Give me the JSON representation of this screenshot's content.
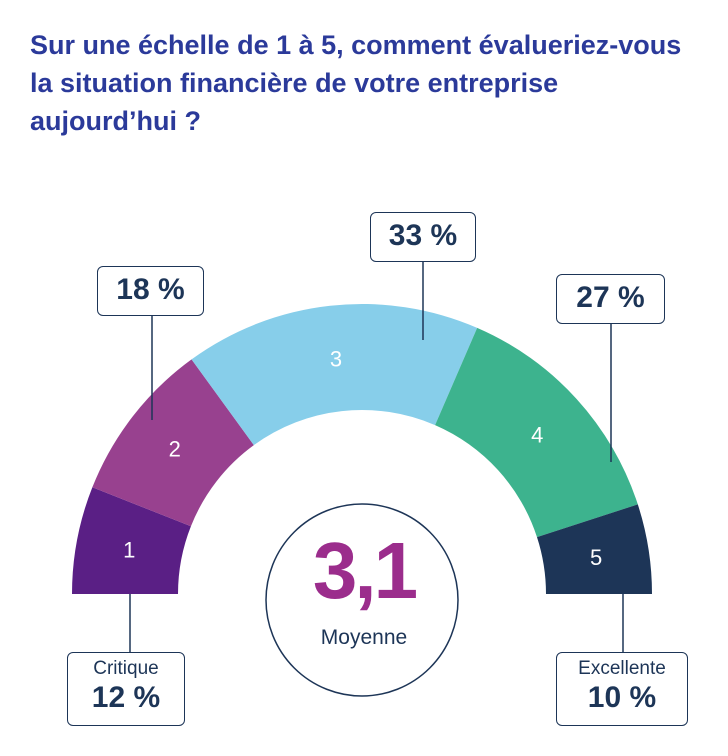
{
  "title": "Sur une échelle de 1 à 5, comment évalueriez-vous la situation financière de votre entreprise aujourd’hui ?",
  "chart_data": {
    "type": "semi-donut",
    "categories": [
      "1",
      "2",
      "3",
      "4",
      "5"
    ],
    "values": [
      12,
      18,
      33,
      27,
      10
    ],
    "value_labels": [
      "12 %",
      "18 %",
      "33 %",
      "27 %",
      "10 %"
    ],
    "colors": [
      "#5a1f85",
      "#98418f",
      "#87ceea",
      "#3db38e",
      "#1d3557"
    ],
    "end_labels": {
      "low": "Critique",
      "high": "Excellente"
    },
    "average": {
      "value": "3,1",
      "label": "Moyenne"
    }
  }
}
